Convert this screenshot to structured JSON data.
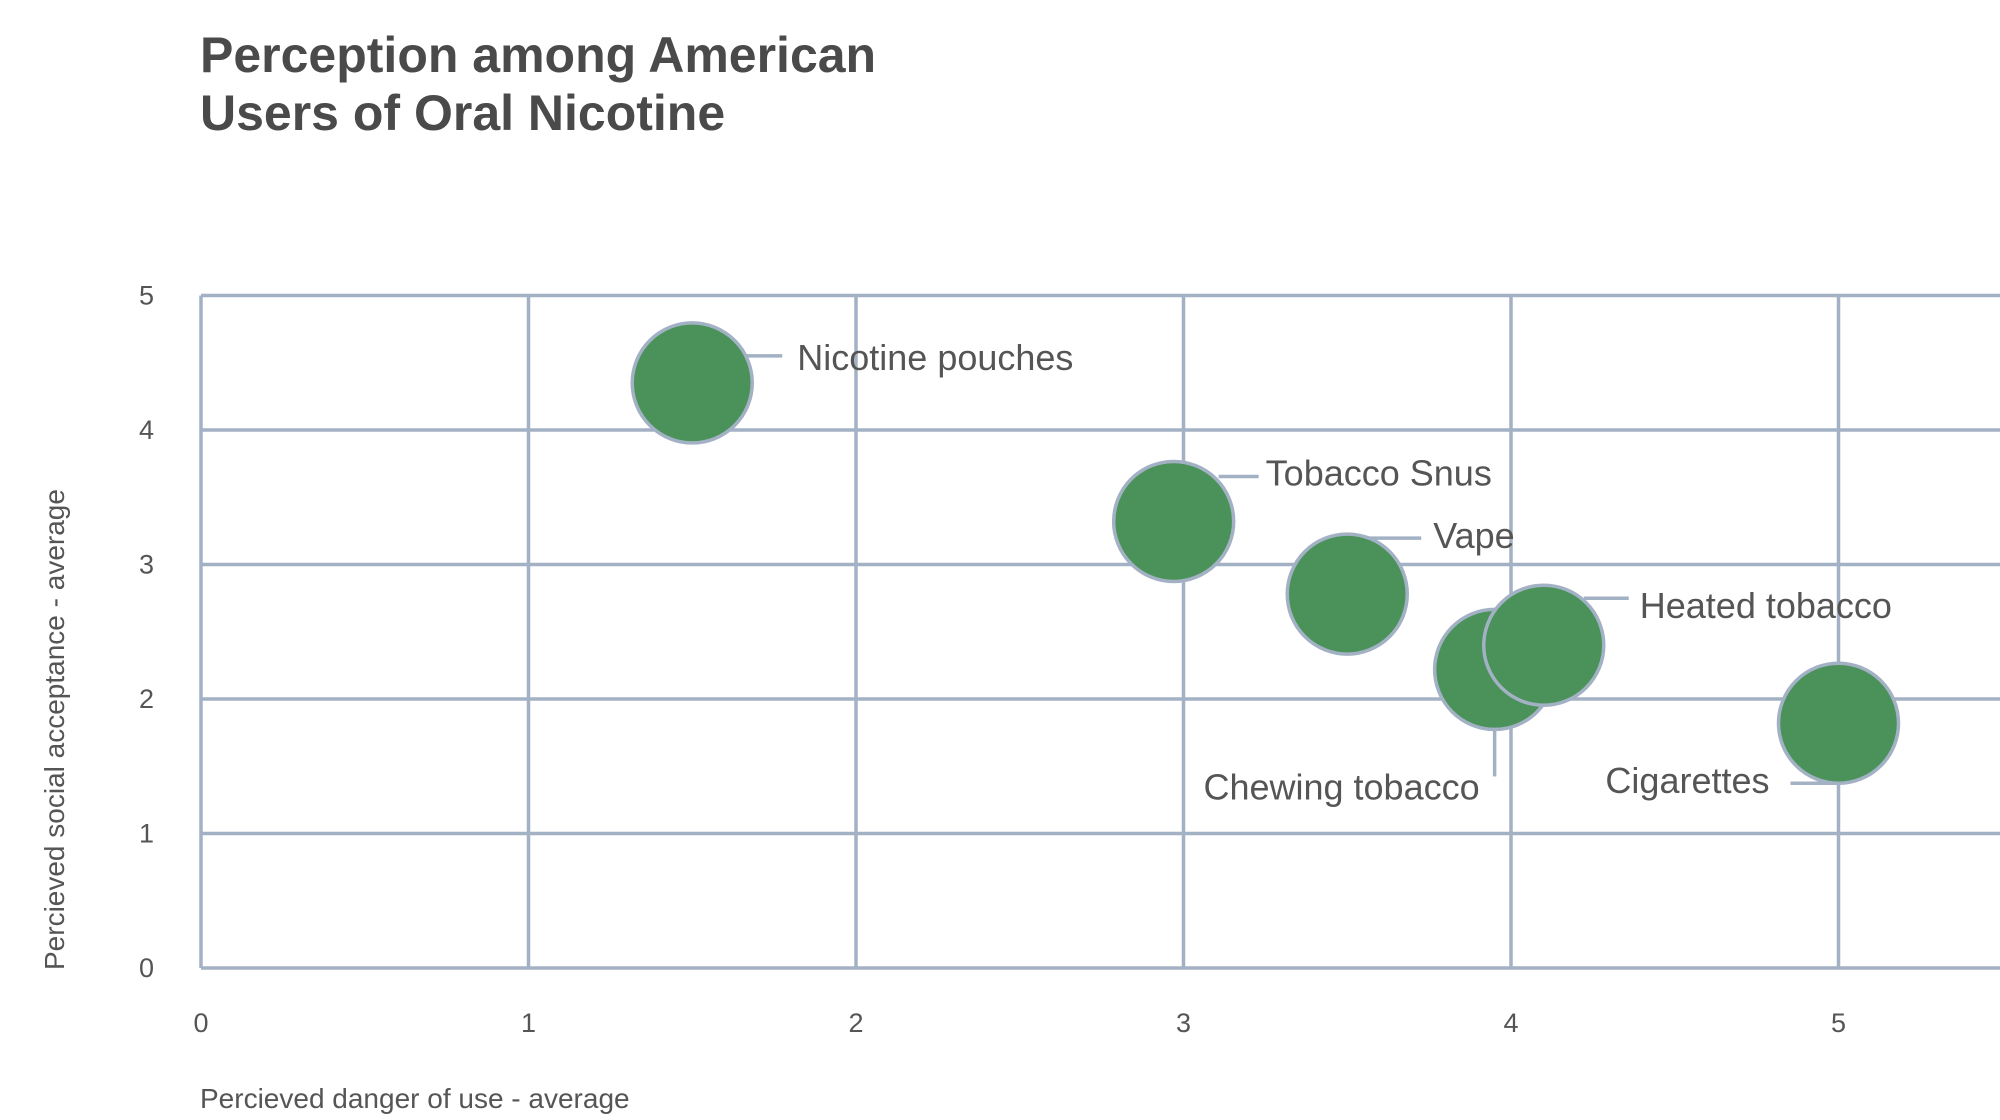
{
  "chart_data": {
    "type": "scatter",
    "title_lines": [
      "Perception among American",
      "Users of Oral Nicotine"
    ],
    "xlabel": "Percieved danger of use - average",
    "ylabel": "Percieved social acceptance - average",
    "xlim": [
      0,
      5.5
    ],
    "ylim": [
      0,
      5
    ],
    "x_ticks": [
      "0",
      "1",
      "2",
      "3",
      "4",
      "5"
    ],
    "y_ticks": [
      "0",
      "1",
      "2",
      "3",
      "4",
      "5"
    ],
    "grid": true,
    "legend": "none",
    "bubble_color": "#4a9259",
    "points": [
      {
        "label": "Nicotine pouches",
        "x": 1.5,
        "y": 4.35
      },
      {
        "label": "Tobacco Snus",
        "x": 2.97,
        "y": 3.32
      },
      {
        "label": "Vape",
        "x": 3.5,
        "y": 2.78
      },
      {
        "label": "Chewing tobacco",
        "x": 3.95,
        "y": 2.22
      },
      {
        "label": "Heated tobacco",
        "x": 4.1,
        "y": 2.4
      },
      {
        "label": "Cigarettes",
        "x": 5.0,
        "y": 1.82
      }
    ]
  }
}
